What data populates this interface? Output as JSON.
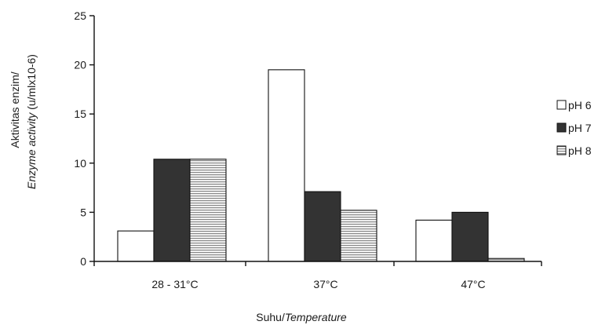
{
  "chart_data": {
    "type": "bar",
    "categories": [
      "28 - 31°C",
      "37°C",
      "47°C"
    ],
    "series": [
      {
        "name": "pH 6",
        "values": [
          3.1,
          19.5,
          4.2
        ],
        "color": "#ffffff",
        "pattern": "none"
      },
      {
        "name": "pH 7",
        "values": [
          10.4,
          7.1,
          5.0
        ],
        "color": "#333333",
        "pattern": "solid"
      },
      {
        "name": "pH 8",
        "values": [
          10.4,
          5.2,
          0.3
        ],
        "color": "#ffffff",
        "pattern": "horizontal-lines"
      }
    ],
    "title": "",
    "xlabel": {
      "plain": "Suhu/",
      "italic": "Temperature"
    },
    "ylabel": {
      "line1": "Aktivitas enzim/",
      "line2_italic": "Enzyme activity",
      "line2_plain": " (u/mlx10-6)"
    },
    "ylim": [
      0,
      25
    ],
    "yticks": [
      0,
      5,
      10,
      15,
      20,
      25
    ],
    "grid": false,
    "legend_position": "right"
  }
}
